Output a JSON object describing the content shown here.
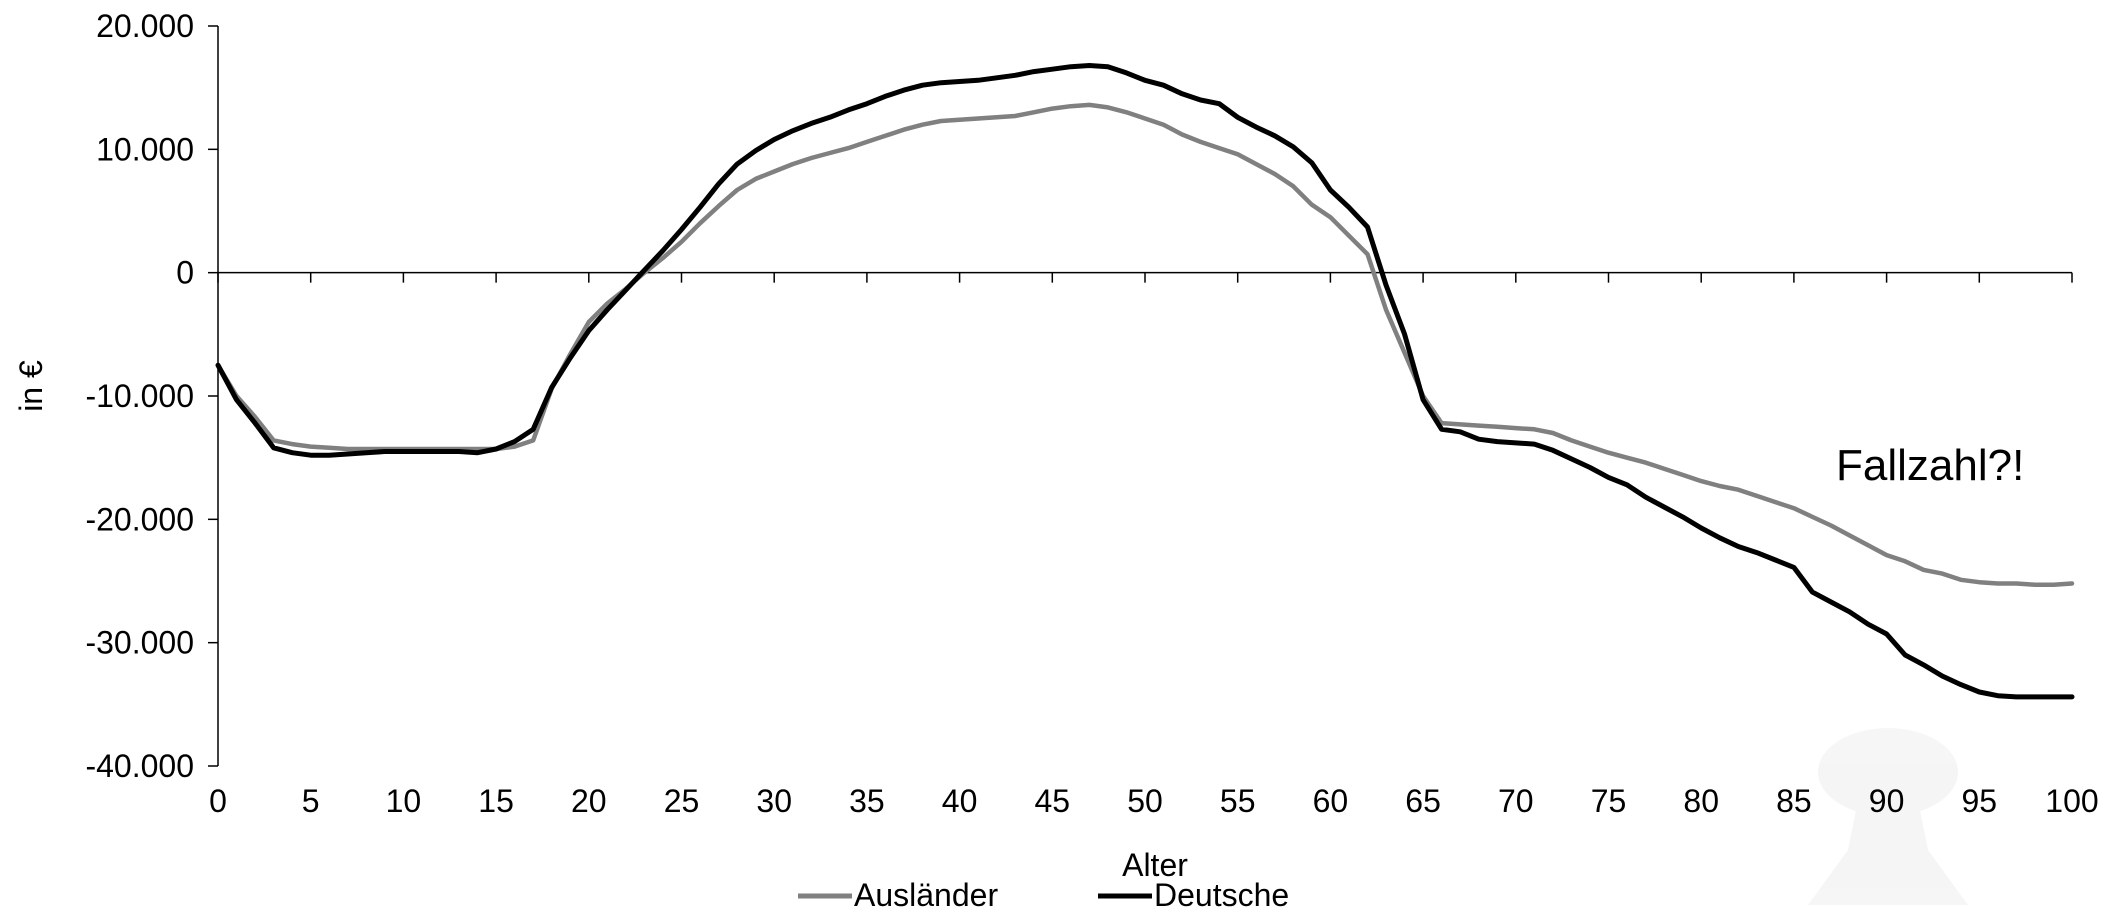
{
  "chart_data": {
    "type": "line",
    "xlabel": "Alter",
    "ylabel": "in €",
    "xlim": [
      0,
      100
    ],
    "ylim": [
      -40000,
      20000
    ],
    "x_ticks": [
      0,
      5,
      10,
      15,
      20,
      25,
      30,
      35,
      40,
      45,
      50,
      55,
      60,
      65,
      70,
      75,
      80,
      85,
      90,
      95,
      100
    ],
    "y_ticks": [
      20000,
      10000,
      0,
      -10000,
      -20000,
      -30000,
      -40000
    ],
    "y_tick_labels": [
      "20.000",
      "10.000",
      "0",
      "-10.000",
      "-20.000",
      "-30.000",
      "-40.000"
    ],
    "grid": false,
    "legend": "bottom",
    "annotation": "Fallzahl?!",
    "series": [
      {
        "name": "Ausländer",
        "color": "#808080",
        "x": [
          0,
          1,
          2,
          3,
          4,
          5,
          6,
          7,
          8,
          9,
          10,
          11,
          12,
          13,
          14,
          15,
          16,
          17,
          18,
          19,
          20,
          21,
          22,
          23,
          24,
          25,
          26,
          27,
          28,
          29,
          30,
          31,
          32,
          33,
          34,
          35,
          36,
          37,
          38,
          39,
          40,
          41,
          42,
          43,
          44,
          45,
          46,
          47,
          48,
          49,
          50,
          51,
          52,
          53,
          54,
          55,
          56,
          57,
          58,
          59,
          60,
          61,
          62,
          63,
          64,
          65,
          66,
          67,
          68,
          69,
          70,
          71,
          72,
          73,
          74,
          75,
          76,
          77,
          78,
          79,
          80,
          81,
          82,
          83,
          84,
          85,
          86,
          87,
          88,
          89,
          90,
          91,
          92,
          93,
          94,
          95,
          96,
          97,
          98,
          99,
          100
        ],
        "values": [
          -7500,
          -10000,
          -11700,
          -13600,
          -13900,
          -14100,
          -14200,
          -14300,
          -14300,
          -14300,
          -14300,
          -14300,
          -14300,
          -14300,
          -14300,
          -14300,
          -14100,
          -13600,
          -9400,
          -6600,
          -4000,
          -2500,
          -1300,
          0,
          1200,
          2500,
          4000,
          5400,
          6700,
          7600,
          8200,
          8800,
          9300,
          9700,
          10100,
          10600,
          11100,
          11600,
          12000,
          12300,
          12400,
          12500,
          12600,
          12700,
          13000,
          13300,
          13500,
          13600,
          13400,
          13000,
          12500,
          12000,
          11200,
          10600,
          10100,
          9600,
          8800,
          8000,
          7000,
          5500,
          4500,
          3000,
          1500,
          -3000,
          -6500,
          -10000,
          -12200,
          -12300,
          -12400,
          -12500,
          -12600,
          -12700,
          -13000,
          -13600,
          -14100,
          -14600,
          -15000,
          -15400,
          -15900,
          -16400,
          -16900,
          -17300,
          -17600,
          -18100,
          -18600,
          -19100,
          -19800,
          -20500,
          -21300,
          -22100,
          -22900,
          -23400,
          -24100,
          -24400,
          -24900,
          -25100,
          -25200,
          -25200,
          -25300,
          -25300,
          -25200
        ]
      },
      {
        "name": "Deutsche",
        "color": "#000000",
        "x": [
          0,
          1,
          2,
          3,
          4,
          5,
          6,
          7,
          8,
          9,
          10,
          11,
          12,
          13,
          14,
          15,
          16,
          17,
          18,
          19,
          20,
          21,
          22,
          23,
          24,
          25,
          26,
          27,
          28,
          29,
          30,
          31,
          32,
          33,
          34,
          35,
          36,
          37,
          38,
          39,
          40,
          41,
          42,
          43,
          44,
          45,
          46,
          47,
          48,
          49,
          50,
          51,
          52,
          53,
          54,
          55,
          56,
          57,
          58,
          59,
          60,
          61,
          62,
          63,
          64,
          65,
          66,
          67,
          68,
          69,
          70,
          71,
          72,
          73,
          74,
          75,
          76,
          77,
          78,
          79,
          80,
          81,
          82,
          83,
          84,
          85,
          86,
          87,
          88,
          89,
          90,
          91,
          92,
          93,
          94,
          95,
          96,
          97,
          98,
          99,
          100
        ],
        "values": [
          -7500,
          -10300,
          -12200,
          -14200,
          -14600,
          -14800,
          -14800,
          -14700,
          -14600,
          -14500,
          -14500,
          -14500,
          -14500,
          -14500,
          -14600,
          -14300,
          -13700,
          -12700,
          -9300,
          -6900,
          -4700,
          -3000,
          -1400,
          200,
          1800,
          3500,
          5300,
          7200,
          8800,
          9900,
          10800,
          11500,
          12100,
          12600,
          13200,
          13700,
          14300,
          14800,
          15200,
          15400,
          15500,
          15600,
          15800,
          16000,
          16300,
          16500,
          16700,
          16800,
          16700,
          16200,
          15600,
          15200,
          14500,
          14000,
          13700,
          12600,
          11800,
          11100,
          10200,
          8900,
          6700,
          5300,
          3700,
          -1000,
          -5000,
          -10300,
          -12700,
          -12900,
          -13500,
          -13700,
          -13800,
          -13900,
          -14400,
          -15100,
          -15800,
          -16600,
          -17200,
          -18200,
          -19000,
          -19800,
          -20700,
          -21500,
          -22200,
          -22700,
          -23300,
          -23900,
          -25900,
          -26700,
          -27500,
          -28500,
          -29300,
          -31000,
          -31800,
          -32700,
          -33400,
          -34000,
          -34300,
          -34400,
          -34400,
          -34400,
          -34400
        ]
      }
    ]
  }
}
